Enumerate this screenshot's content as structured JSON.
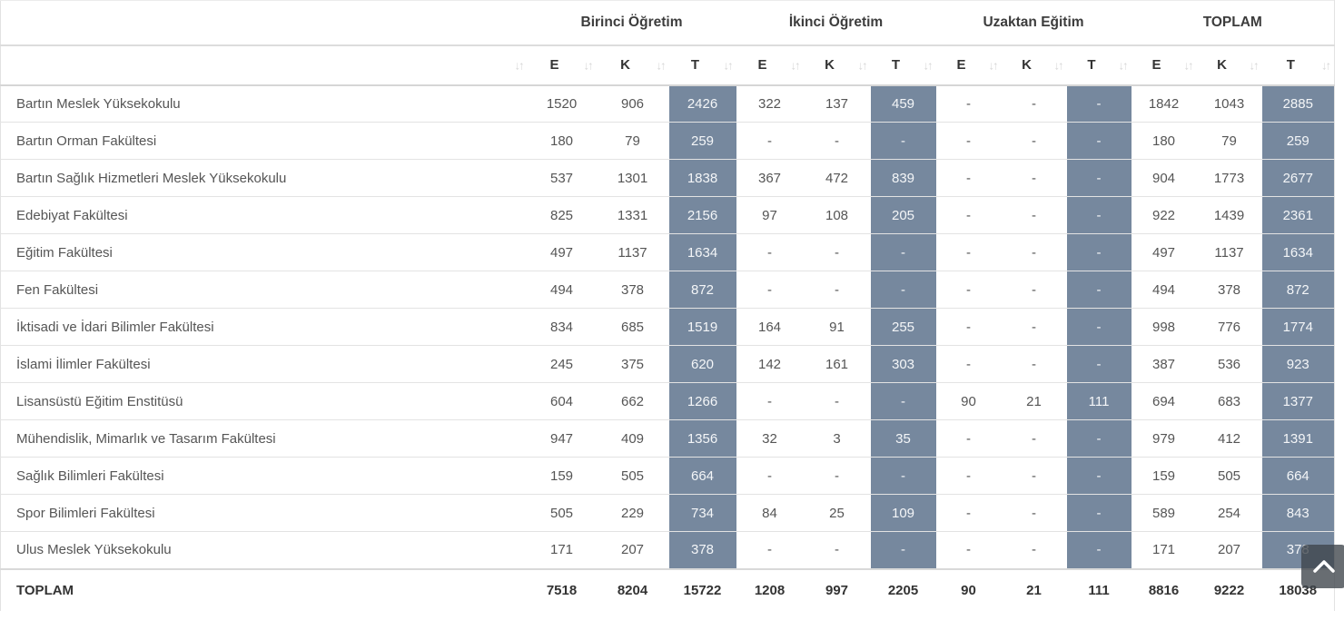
{
  "table": {
    "groups": [
      {
        "label": "Birinci Öğretim"
      },
      {
        "label": "İkinci Öğretim"
      },
      {
        "label": "Uzaktan Eğitim"
      },
      {
        "label": "TOPLAM"
      }
    ],
    "sub_columns": [
      "E",
      "K",
      "T"
    ],
    "rows": [
      {
        "name": "Bartın Meslek Yüksekokulu",
        "values": [
          "1520",
          "906",
          "2426",
          "322",
          "137",
          "459",
          "-",
          "-",
          "-",
          "1842",
          "1043",
          "2885"
        ]
      },
      {
        "name": "Bartın Orman Fakültesi",
        "values": [
          "180",
          "79",
          "259",
          "-",
          "-",
          "-",
          "-",
          "-",
          "-",
          "180",
          "79",
          "259"
        ]
      },
      {
        "name": "Bartın Sağlık Hizmetleri Meslek Yüksekokulu",
        "values": [
          "537",
          "1301",
          "1838",
          "367",
          "472",
          "839",
          "-",
          "-",
          "-",
          "904",
          "1773",
          "2677"
        ]
      },
      {
        "name": "Edebiyat Fakültesi",
        "values": [
          "825",
          "1331",
          "2156",
          "97",
          "108",
          "205",
          "-",
          "-",
          "-",
          "922",
          "1439",
          "2361"
        ]
      },
      {
        "name": "Eğitim Fakültesi",
        "values": [
          "497",
          "1137",
          "1634",
          "-",
          "-",
          "-",
          "-",
          "-",
          "-",
          "497",
          "1137",
          "1634"
        ]
      },
      {
        "name": "Fen Fakültesi",
        "values": [
          "494",
          "378",
          "872",
          "-",
          "-",
          "-",
          "-",
          "-",
          "-",
          "494",
          "378",
          "872"
        ]
      },
      {
        "name": "İktisadi ve İdari Bilimler Fakültesi",
        "values": [
          "834",
          "685",
          "1519",
          "164",
          "91",
          "255",
          "-",
          "-",
          "-",
          "998",
          "776",
          "1774"
        ]
      },
      {
        "name": "İslami İlimler Fakültesi",
        "values": [
          "245",
          "375",
          "620",
          "142",
          "161",
          "303",
          "-",
          "-",
          "-",
          "387",
          "536",
          "923"
        ]
      },
      {
        "name": "Lisansüstü Eğitim Enstitüsü",
        "values": [
          "604",
          "662",
          "1266",
          "-",
          "-",
          "-",
          "90",
          "21",
          "111",
          "694",
          "683",
          "1377"
        ]
      },
      {
        "name": "Mühendislik, Mimarlık ve Tasarım Fakültesi",
        "values": [
          "947",
          "409",
          "1356",
          "32",
          "3",
          "35",
          "-",
          "-",
          "-",
          "979",
          "412",
          "1391"
        ]
      },
      {
        "name": "Sağlık Bilimleri Fakültesi",
        "values": [
          "159",
          "505",
          "664",
          "-",
          "-",
          "-",
          "-",
          "-",
          "-",
          "159",
          "505",
          "664"
        ]
      },
      {
        "name": "Spor Bilimleri Fakültesi",
        "values": [
          "505",
          "229",
          "734",
          "84",
          "25",
          "109",
          "-",
          "-",
          "-",
          "589",
          "254",
          "843"
        ]
      },
      {
        "name": "Ulus Meslek Yüksekokulu",
        "values": [
          "171",
          "207",
          "378",
          "-",
          "-",
          "-",
          "-",
          "-",
          "-",
          "171",
          "207",
          "378"
        ]
      }
    ],
    "footer": {
      "label": "TOPLAM",
      "values": [
        "7518",
        "8204",
        "15722",
        "1208",
        "997",
        "2205",
        "90",
        "21",
        "111",
        "8816",
        "9222",
        "18038"
      ]
    }
  },
  "icons": {
    "sort": "↓↑",
    "scroll_top": "chevron-up"
  },
  "colors": {
    "total_column_bg": "#76889e",
    "total_column_text": "#f4f6f8",
    "sort_icon": "#d8d8d8",
    "scroll_button_bg": "rgba(62,68,74,0.78)"
  }
}
